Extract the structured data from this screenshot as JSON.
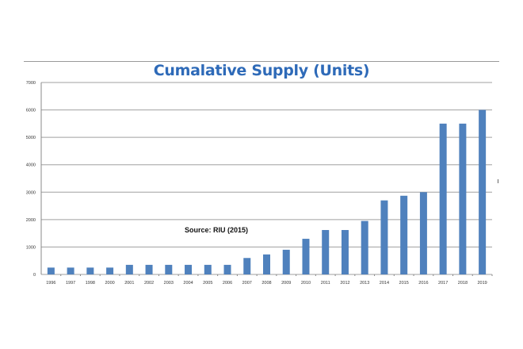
{
  "chart_data": {
    "type": "bar",
    "title": "Cumalative Supply (Units)",
    "annotation": "Source: RIU (2015)",
    "xlabel": "",
    "ylabel": "",
    "ylim": [
      0,
      7000
    ],
    "yticks": [
      0,
      1000,
      2000,
      3000,
      4000,
      5000,
      6000,
      7000
    ],
    "grid": true,
    "categories": [
      "1996",
      "1997",
      "1998",
      "2000",
      "2001",
      "2002",
      "2003",
      "2004",
      "2005",
      "2006",
      "2007",
      "2008",
      "2009",
      "2010",
      "2011",
      "2012",
      "2013",
      "2014",
      "2015",
      "2016",
      "2017",
      "2018",
      "2019"
    ],
    "values": [
      250,
      250,
      250,
      250,
      350,
      350,
      350,
      350,
      350,
      350,
      600,
      730,
      900,
      1300,
      1620,
      1620,
      1950,
      2700,
      2870,
      3000,
      5500,
      5500,
      6000
    ],
    "bar_color": "#4f81bd"
  }
}
